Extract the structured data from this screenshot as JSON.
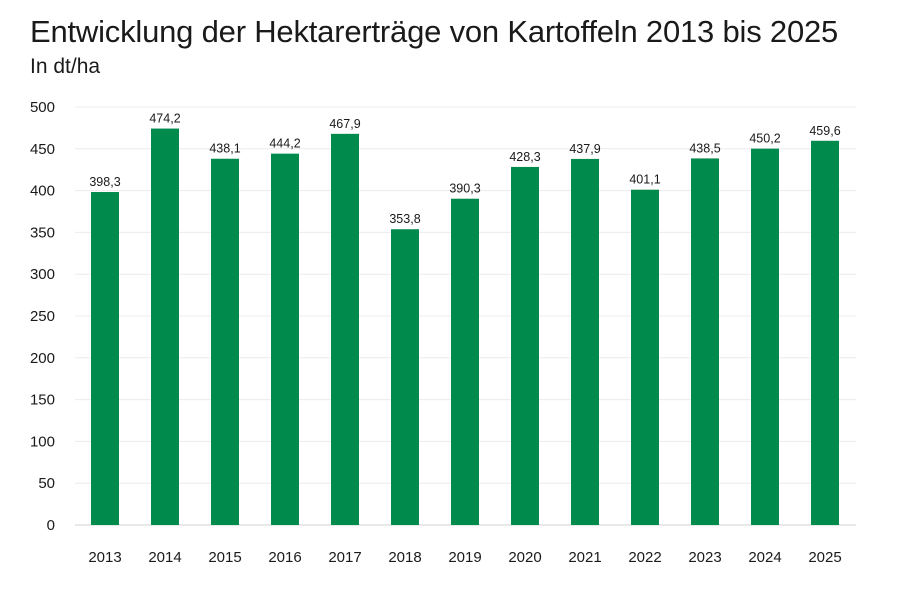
{
  "chart_data": {
    "type": "bar",
    "title": "Entwicklung der Hektarerträge von Kartoffeln 2013 bis 2025",
    "subtitle": "In dt/ha",
    "categories": [
      "2013",
      "2014",
      "2015",
      "2016",
      "2017",
      "2018",
      "2019",
      "2020",
      "2021",
      "2022",
      "2023",
      "2024",
      "2025"
    ],
    "values": [
      398.3,
      474.2,
      438.1,
      444.2,
      467.9,
      353.8,
      390.3,
      428.3,
      437.9,
      401.1,
      438.5,
      450.2,
      459.6
    ],
    "value_labels": [
      "398,3",
      "474,2",
      "438,1",
      "444,2",
      "467,9",
      "353,8",
      "390,3",
      "428,3",
      "437,9",
      "401,1",
      "438,5",
      "450,2",
      "459,6"
    ],
    "ylim": [
      0,
      500
    ],
    "yticks": [
      0,
      50,
      100,
      150,
      200,
      250,
      300,
      350,
      400,
      450,
      500
    ],
    "grid": true,
    "bar_color": "#008a4c"
  }
}
